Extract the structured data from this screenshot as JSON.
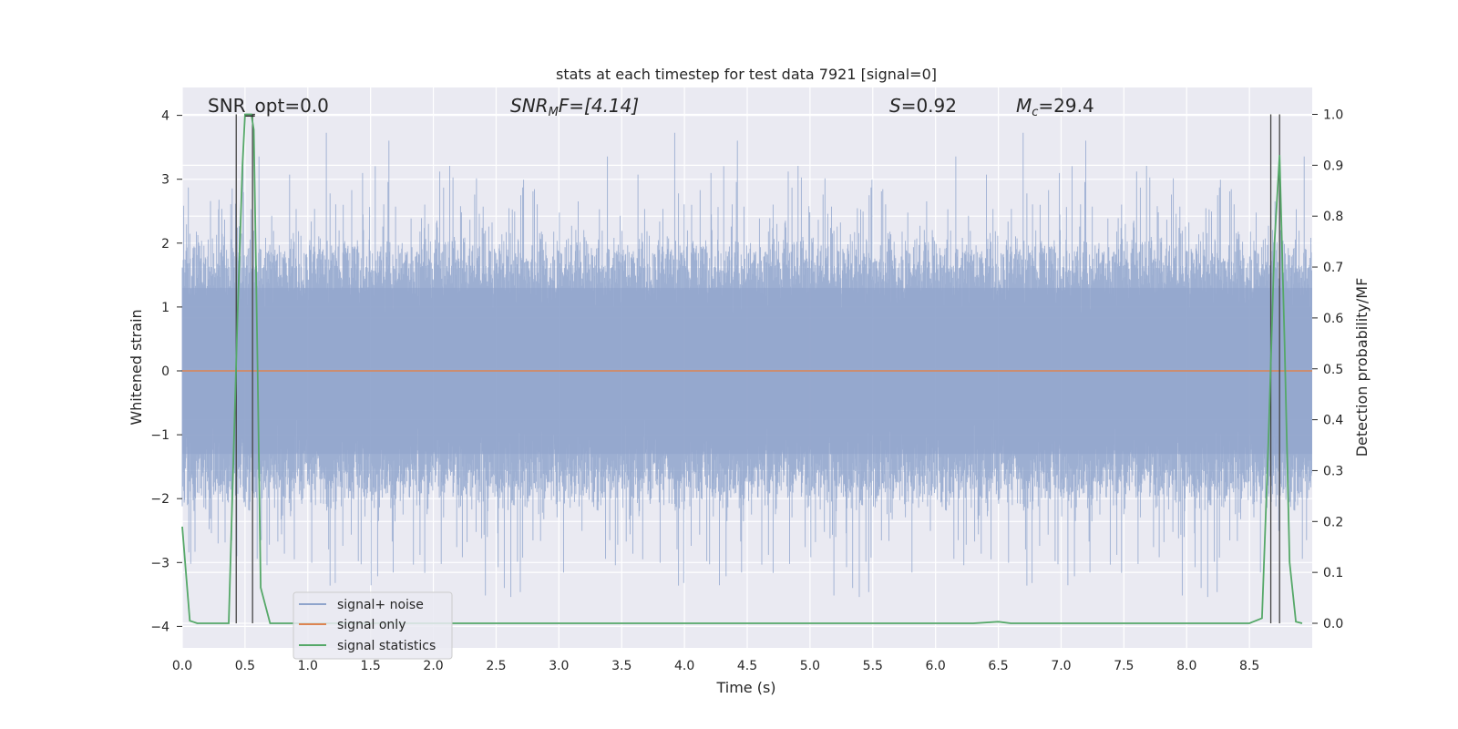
{
  "chart_data": {
    "type": "line",
    "title": "stats at each timestep for test data 7921 [signal=0]",
    "xlabel": "Time (s)",
    "ylabel": "Whitened strain",
    "y2label": "Detection probability/MF",
    "xlim": [
      0.0,
      9.0
    ],
    "ylim": [
      -4.3,
      4.4
    ],
    "y2lim": [
      -0.045,
      1.045
    ],
    "x_ticks": [
      "0.0",
      "0.5",
      "1.0",
      "1.5",
      "2.0",
      "2.5",
      "3.0",
      "3.5",
      "4.0",
      "4.5",
      "5.0",
      "5.5",
      "6.0",
      "6.5",
      "7.0",
      "7.5",
      "8.0",
      "8.5"
    ],
    "y_ticks": [
      "−4",
      "−3",
      "−2",
      "−1",
      "0",
      "1",
      "2",
      "3",
      "4"
    ],
    "y2_ticks": [
      "0.0",
      "0.1",
      "0.2",
      "0.3",
      "0.4",
      "0.5",
      "0.6",
      "0.7",
      "0.8",
      "0.9",
      "1.0"
    ],
    "grid": true,
    "legend_position": "lower-left",
    "annotations": {
      "snr_opt": "SNR_opt=0.0",
      "snr_mf_base": "SNR",
      "snr_mf_sub": "M",
      "snr_mf_rest": "F=[4.14]",
      "s_name": "S",
      "s_rest": "=0.92",
      "mc_base": "M",
      "mc_sub": "c",
      "mc_rest": "=29.4"
    },
    "series": [
      {
        "name": "signal+ noise",
        "color": "#8fa4cc",
        "note_values": "dense noise trace, envelope approx ±2.5, peaks to about ±3.5",
        "sample_rate_hz": 1024,
        "duration_s": 9.0,
        "typical_upper": 2.3,
        "typical_lower": -2.3
      },
      {
        "name": "signal only",
        "color": "#dd8452",
        "x": [
          0.0,
          9.0
        ],
        "y": [
          0.0,
          0.0
        ]
      },
      {
        "name": "signal statistics",
        "color": "#55a868",
        "axis": "right",
        "x": [
          0.0,
          0.06,
          0.12,
          0.2,
          0.3,
          0.37,
          0.44,
          0.48,
          0.5,
          0.52,
          0.55,
          0.57,
          0.6,
          0.625,
          0.7,
          1.0,
          2.0,
          3.0,
          4.0,
          5.0,
          6.0,
          6.3,
          6.5,
          6.6,
          7.0,
          8.0,
          8.5,
          8.6,
          8.65,
          8.7,
          8.74,
          8.78,
          8.82,
          8.87,
          8.92
        ],
        "y": [
          0.19,
          0.005,
          0.0,
          0.0,
          0.0,
          0.0,
          0.6,
          0.9,
          1.0,
          1.0,
          1.0,
          0.97,
          0.5,
          0.07,
          0.0,
          0.0,
          0.0,
          0.0,
          0.0,
          0.0,
          0.0,
          0.0,
          0.003,
          0.0,
          0.0,
          0.0,
          0.0,
          0.01,
          0.35,
          0.75,
          0.92,
          0.55,
          0.12,
          0.003,
          0.0
        ]
      }
    ],
    "vlines": [
      0.43,
      0.56,
      8.67,
      8.74
    ],
    "hbar": {
      "x0": 0.5,
      "x1": 0.58,
      "y": 1.0
    }
  }
}
